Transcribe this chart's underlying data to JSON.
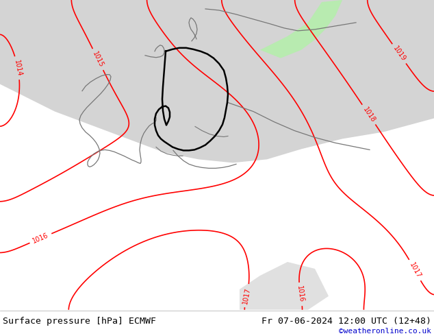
{
  "title_left": "Surface pressure [hPa] ECMWF",
  "title_right": "Fr 07-06-2024 12:00 UTC (12+48)",
  "credit": "©weatheronline.co.uk",
  "bg_land_green": "#b8ebb0",
  "bg_sea_gray": "#d4d4d4",
  "bg_sea_light": "#e0e0e0",
  "contour_color_red": "#ff0000",
  "contour_color_blue": "#0000ff",
  "contour_color_black": "#000000",
  "border_de_color": "#000000",
  "border_other_color": "#777777",
  "credit_color": "#0000cc",
  "figsize": [
    6.34,
    4.9
  ],
  "dpi": 100
}
